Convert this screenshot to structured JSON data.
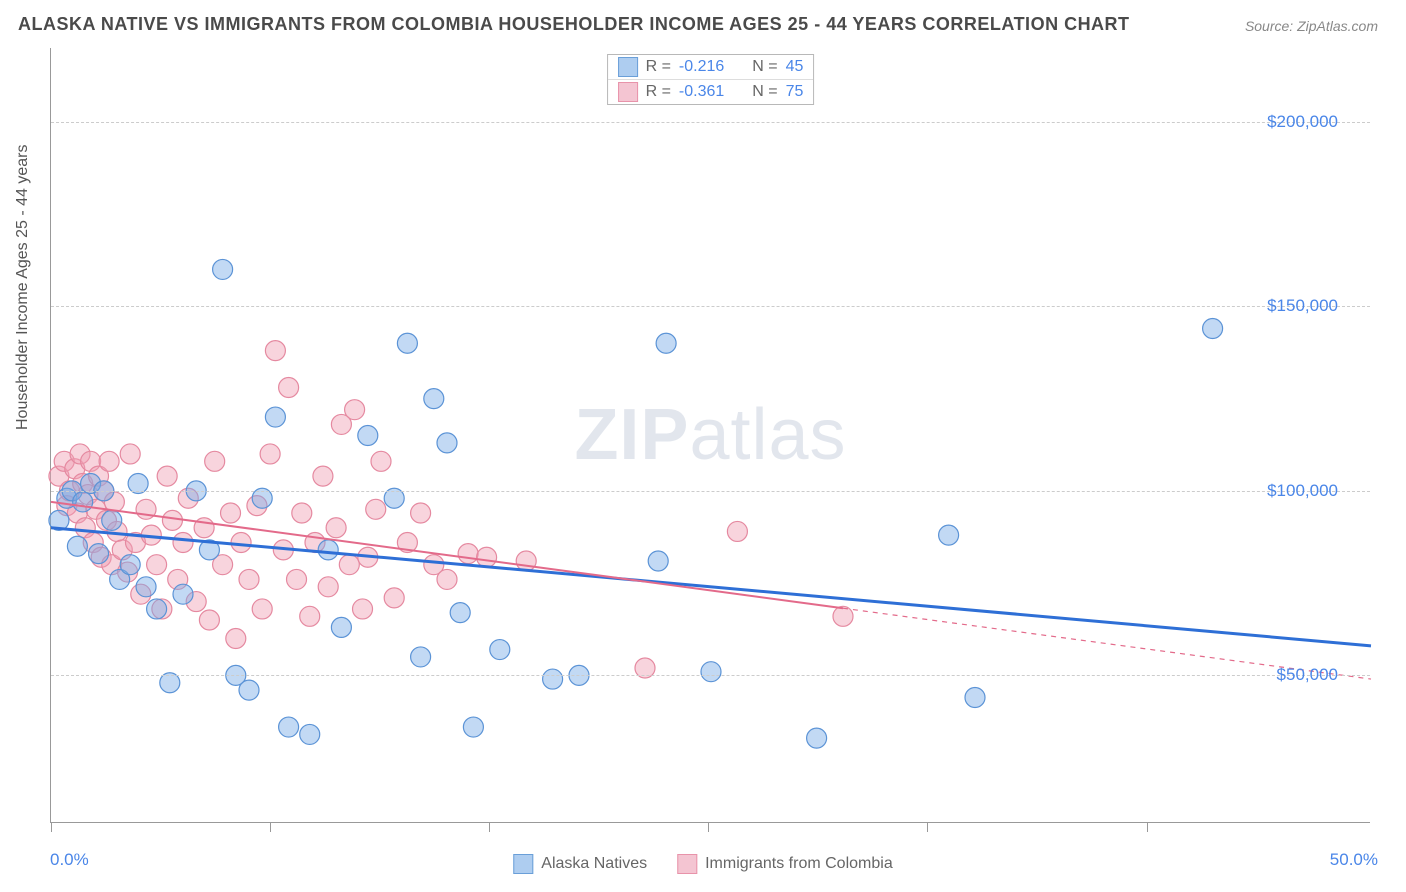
{
  "title": "ALASKA NATIVE VS IMMIGRANTS FROM COLOMBIA HOUSEHOLDER INCOME AGES 25 - 44 YEARS CORRELATION CHART",
  "source": "Source: ZipAtlas.com",
  "y_axis_label": "Householder Income Ages 25 - 44 years",
  "watermark_bold": "ZIP",
  "watermark_rest": "atlas",
  "chart": {
    "type": "scatter",
    "xlim": [
      0,
      50
    ],
    "ylim": [
      10000,
      220000
    ],
    "x_tick_labels": {
      "start": "0.0%",
      "end": "50.0%"
    },
    "x_minor_ticks": [
      0,
      8.3,
      16.6,
      24.9,
      33.2,
      41.5
    ],
    "y_gridlines": [
      50000,
      100000,
      150000,
      200000
    ],
    "y_tick_labels": [
      "$50,000",
      "$100,000",
      "$150,000",
      "$200,000"
    ],
    "grid_color": "#cccccc",
    "background_color": "#ffffff",
    "axis_color": "#999999"
  },
  "series": [
    {
      "name": "Alaska Natives",
      "fill": "rgba(120,170,230,0.45)",
      "stroke": "#5b93d6",
      "swatch_fill": "#aecdf0",
      "swatch_stroke": "#6a9fd8",
      "r_label": "R = ",
      "r_value": "-0.216",
      "n_label": "N = ",
      "n_value": "45",
      "trend": {
        "x1": 0,
        "y1": 90000,
        "x2": 50,
        "y2": 58000,
        "solid_end_x": 50,
        "color": "#2e6fd6",
        "width": 3
      },
      "points": [
        [
          0.3,
          92000
        ],
        [
          0.6,
          98000
        ],
        [
          0.8,
          100000
        ],
        [
          1.0,
          85000
        ],
        [
          1.2,
          97000
        ],
        [
          1.5,
          102000
        ],
        [
          1.8,
          83000
        ],
        [
          2.0,
          100000
        ],
        [
          2.3,
          92000
        ],
        [
          2.6,
          76000
        ],
        [
          3.0,
          80000
        ],
        [
          3.3,
          102000
        ],
        [
          3.6,
          74000
        ],
        [
          4.0,
          68000
        ],
        [
          4.5,
          48000
        ],
        [
          5.0,
          72000
        ],
        [
          5.5,
          100000
        ],
        [
          6.0,
          84000
        ],
        [
          6.5,
          160000
        ],
        [
          7.0,
          50000
        ],
        [
          7.5,
          46000
        ],
        [
          8.0,
          98000
        ],
        [
          8.5,
          120000
        ],
        [
          9.0,
          36000
        ],
        [
          9.8,
          34000
        ],
        [
          10.5,
          84000
        ],
        [
          11.0,
          63000
        ],
        [
          12.0,
          115000
        ],
        [
          13.0,
          98000
        ],
        [
          13.5,
          140000
        ],
        [
          14.0,
          55000
        ],
        [
          14.5,
          125000
        ],
        [
          15.0,
          113000
        ],
        [
          15.5,
          67000
        ],
        [
          16.0,
          36000
        ],
        [
          17.0,
          57000
        ],
        [
          19.0,
          49000
        ],
        [
          20.0,
          50000
        ],
        [
          23.0,
          81000
        ],
        [
          23.3,
          140000
        ],
        [
          25.0,
          51000
        ],
        [
          29.0,
          33000
        ],
        [
          34.0,
          88000
        ],
        [
          35.0,
          44000
        ],
        [
          44.0,
          144000
        ]
      ]
    },
    {
      "name": "Immigrants from Colombia",
      "fill": "rgba(240,160,180,0.45)",
      "stroke": "#e589a0",
      "swatch_fill": "#f4c5d2",
      "swatch_stroke": "#e893aa",
      "r_label": "R = ",
      "r_value": "-0.361",
      "n_label": "N = ",
      "n_value": "75",
      "trend": {
        "x1": 0,
        "y1": 97000,
        "x2": 50,
        "y2": 49000,
        "solid_end_x": 30,
        "color": "#e36a8a",
        "width": 2
      },
      "points": [
        [
          0.3,
          104000
        ],
        [
          0.5,
          108000
        ],
        [
          0.6,
          96000
        ],
        [
          0.7,
          100000
        ],
        [
          0.9,
          106000
        ],
        [
          1.0,
          94000
        ],
        [
          1.1,
          110000
        ],
        [
          1.2,
          102000
        ],
        [
          1.3,
          90000
        ],
        [
          1.4,
          99000
        ],
        [
          1.5,
          108000
        ],
        [
          1.6,
          86000
        ],
        [
          1.7,
          95000
        ],
        [
          1.8,
          104000
        ],
        [
          1.9,
          82000
        ],
        [
          2.0,
          100000
        ],
        [
          2.1,
          92000
        ],
        [
          2.2,
          108000
        ],
        [
          2.3,
          80000
        ],
        [
          2.4,
          97000
        ],
        [
          2.5,
          89000
        ],
        [
          2.7,
          84000
        ],
        [
          2.9,
          78000
        ],
        [
          3.0,
          110000
        ],
        [
          3.2,
          86000
        ],
        [
          3.4,
          72000
        ],
        [
          3.6,
          95000
        ],
        [
          3.8,
          88000
        ],
        [
          4.0,
          80000
        ],
        [
          4.2,
          68000
        ],
        [
          4.4,
          104000
        ],
        [
          4.6,
          92000
        ],
        [
          4.8,
          76000
        ],
        [
          5.0,
          86000
        ],
        [
          5.2,
          98000
        ],
        [
          5.5,
          70000
        ],
        [
          5.8,
          90000
        ],
        [
          6.0,
          65000
        ],
        [
          6.2,
          108000
        ],
        [
          6.5,
          80000
        ],
        [
          6.8,
          94000
        ],
        [
          7.0,
          60000
        ],
        [
          7.2,
          86000
        ],
        [
          7.5,
          76000
        ],
        [
          7.8,
          96000
        ],
        [
          8.0,
          68000
        ],
        [
          8.3,
          110000
        ],
        [
          8.5,
          138000
        ],
        [
          8.8,
          84000
        ],
        [
          9.0,
          128000
        ],
        [
          9.3,
          76000
        ],
        [
          9.5,
          94000
        ],
        [
          9.8,
          66000
        ],
        [
          10.0,
          86000
        ],
        [
          10.3,
          104000
        ],
        [
          10.5,
          74000
        ],
        [
          10.8,
          90000
        ],
        [
          11.0,
          118000
        ],
        [
          11.3,
          80000
        ],
        [
          11.5,
          122000
        ],
        [
          11.8,
          68000
        ],
        [
          12.0,
          82000
        ],
        [
          12.3,
          95000
        ],
        [
          12.5,
          108000
        ],
        [
          13.0,
          71000
        ],
        [
          13.5,
          86000
        ],
        [
          14.0,
          94000
        ],
        [
          14.5,
          80000
        ],
        [
          15.0,
          76000
        ],
        [
          15.8,
          83000
        ],
        [
          16.5,
          82000
        ],
        [
          18.0,
          81000
        ],
        [
          22.5,
          52000
        ],
        [
          26.0,
          89000
        ],
        [
          30.0,
          66000
        ]
      ]
    }
  ],
  "legend_bottom": [
    {
      "label": "Alaska Natives",
      "fill": "#aecdf0",
      "stroke": "#6a9fd8"
    },
    {
      "label": "Immigrants from Colombia",
      "fill": "#f4c5d2",
      "stroke": "#e893aa"
    }
  ],
  "marker_radius": 10
}
